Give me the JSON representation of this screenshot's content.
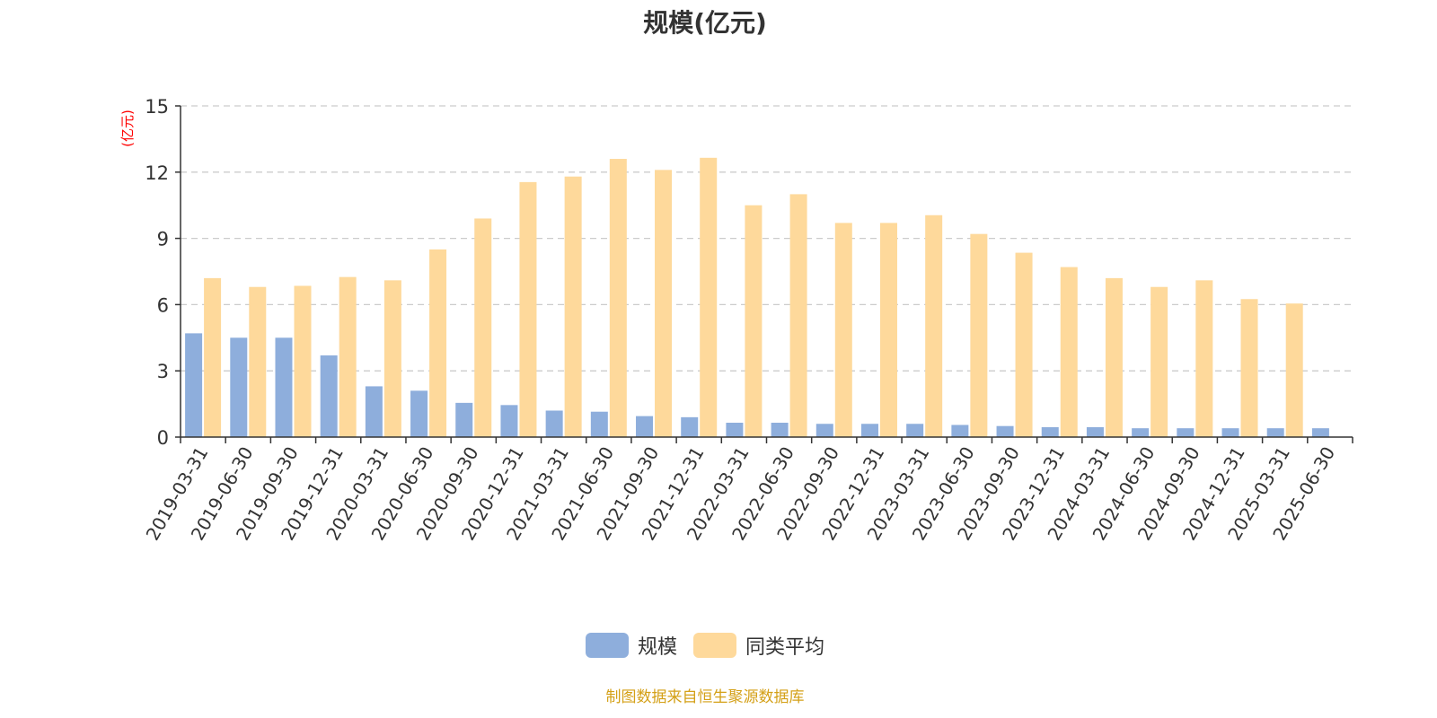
{
  "chart_data": {
    "type": "bar",
    "title": "规模(亿元)",
    "ylabel": "(亿元)",
    "ylim": [
      0,
      15
    ],
    "yticks": [
      0,
      3,
      6,
      9,
      12,
      15
    ],
    "grid": true,
    "legend_placement": "bottom-center",
    "categories": [
      "2019-03-31",
      "2019-06-30",
      "2019-09-30",
      "2019-12-31",
      "2020-03-31",
      "2020-06-30",
      "2020-09-30",
      "2020-12-31",
      "2021-03-31",
      "2021-06-30",
      "2021-09-30",
      "2021-12-31",
      "2022-03-31",
      "2022-06-30",
      "2022-09-30",
      "2022-12-31",
      "2023-03-31",
      "2023-06-30",
      "2023-09-30",
      "2023-12-31",
      "2024-03-31",
      "2024-06-30",
      "2024-09-30",
      "2024-12-31",
      "2025-03-31",
      "2025-06-30"
    ],
    "series": [
      {
        "name": "规模",
        "color": "#8eaedc",
        "values": [
          4.7,
          4.5,
          4.5,
          3.7,
          2.3,
          2.1,
          1.55,
          1.45,
          1.2,
          1.15,
          0.95,
          0.9,
          0.65,
          0.65,
          0.6,
          0.6,
          0.6,
          0.55,
          0.5,
          0.45,
          0.45,
          0.4,
          0.4,
          0.4,
          0.4,
          0.4
        ]
      },
      {
        "name": "同类平均",
        "color": "#fed99b",
        "values": [
          7.2,
          6.8,
          6.85,
          7.25,
          7.1,
          8.5,
          9.9,
          11.55,
          11.8,
          12.6,
          12.1,
          12.65,
          10.5,
          11.0,
          9.7,
          9.7,
          10.05,
          9.2,
          8.35,
          7.7,
          7.2,
          6.8,
          7.1,
          6.25,
          6.05,
          null
        ]
      }
    ]
  },
  "colors": {
    "axis_label": "#ff0000",
    "source_note": "#d4a017",
    "grid": "#cccccc",
    "text": "#333333"
  },
  "source_note": "制图数据来自恒生聚源数据库"
}
